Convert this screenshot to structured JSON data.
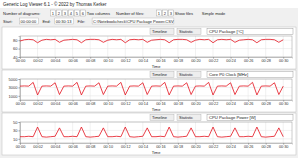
{
  "window": {
    "title": "Generic Log Viewer 6.1 - © 2022 by Thomas Kerker",
    "toolbar": [
      "Number of diagrams:",
      "1",
      "2",
      "3",
      "4",
      "5",
      "6",
      "Two columns",
      "Number of files:",
      "1",
      "2",
      "3",
      "Show files",
      "Simple mode"
    ],
    "toolbar2": [
      "Start:",
      "00:00:00",
      "End:",
      "00:30:13",
      "File:",
      "C:\\Notebookcheck\\CPU Package Power.CSV"
    ]
  },
  "panel_buttons": [
    "Timeline",
    "Statistic"
  ],
  "chart_data": [
    {
      "type": "line",
      "title": "CPU Package [°C]",
      "x_label": "Time",
      "color": "#e3101c",
      "grid": true,
      "x": [
        0,
        0.5,
        1,
        1.5,
        2,
        2.5,
        3,
        3.5,
        4,
        4.5,
        5,
        5.5,
        6,
        6.5,
        7,
        7.5,
        8,
        8.5,
        9,
        9.5,
        10,
        10.5,
        11,
        11.5,
        12,
        12.5,
        13,
        13.5,
        14,
        14.5,
        15,
        15.5,
        16,
        16.5,
        17,
        17.5,
        18,
        18.5,
        19,
        19.5,
        20,
        20.5,
        21,
        21.5,
        22,
        22.5,
        23,
        23.5,
        24,
        24.5,
        25,
        25.5,
        26,
        26.5,
        27,
        27.5,
        28,
        28.5,
        29,
        29.5,
        30
      ],
      "values": [
        78,
        81,
        82,
        81,
        74,
        80,
        82,
        81,
        82,
        75,
        80,
        81,
        82,
        81,
        74,
        81,
        82,
        82,
        81,
        75,
        80,
        82,
        81,
        82,
        74,
        81,
        82,
        81,
        82,
        75,
        80,
        81,
        82,
        81,
        74,
        81,
        82,
        82,
        81,
        75,
        80,
        82,
        81,
        82,
        74,
        81,
        82,
        81,
        82,
        75,
        80,
        81,
        82,
        81,
        74,
        81,
        82,
        82,
        81,
        75,
        81
      ],
      "xlim": [
        0,
        31
      ],
      "ylim": [
        40,
        90
      ],
      "yticks": [
        40,
        60,
        80
      ],
      "xticks": [
        {
          "value": 0,
          "label": "00:00"
        },
        {
          "value": 2,
          "label": "00:02"
        },
        {
          "value": 4,
          "label": "00:04"
        },
        {
          "value": 6,
          "label": "00:06"
        },
        {
          "value": 8,
          "label": "00:08"
        },
        {
          "value": 10,
          "label": "00:10"
        },
        {
          "value": 12,
          "label": "00:12"
        },
        {
          "value": 14,
          "label": "00:14"
        },
        {
          "value": 16,
          "label": "00:16"
        },
        {
          "value": 18,
          "label": "00:18"
        },
        {
          "value": 20,
          "label": "00:20"
        },
        {
          "value": 22,
          "label": "00:22"
        },
        {
          "value": 24,
          "label": "00:24"
        },
        {
          "value": 26,
          "label": "00:26"
        },
        {
          "value": 28,
          "label": "00:28"
        },
        {
          "value": 30,
          "label": "00:30"
        }
      ]
    },
    {
      "type": "line",
      "title": "Core P0 Clock [MHz]",
      "x_label": "Time",
      "color": "#e3101c",
      "grid": true,
      "x": [
        0,
        0.5,
        1,
        1.5,
        2,
        2.5,
        3,
        3.5,
        4,
        4.5,
        5,
        5.5,
        6,
        6.5,
        7,
        7.5,
        8,
        8.5,
        9,
        9.5,
        10,
        10.5,
        11,
        11.5,
        12,
        12.5,
        13,
        13.5,
        14,
        14.5,
        15,
        15.5,
        16,
        16.5,
        17,
        17.5,
        18,
        18.5,
        19,
        19.5,
        20,
        20.5,
        21,
        21.5,
        22,
        22.5,
        23,
        23.5,
        24,
        24.5,
        25,
        25.5,
        26,
        26.5,
        27,
        27.5,
        28,
        28.5,
        29,
        29.5,
        30
      ],
      "values": [
        3300,
        3350,
        3300,
        4200,
        1200,
        3300,
        3350,
        3300,
        4100,
        1300,
        3300,
        3350,
        3300,
        4200,
        1200,
        3300,
        3350,
        3300,
        4100,
        1300,
        3300,
        3350,
        3300,
        4200,
        1200,
        3300,
        3350,
        3300,
        4100,
        1300,
        3300,
        3350,
        3300,
        4200,
        1200,
        3300,
        3350,
        3300,
        4100,
        1300,
        3300,
        3350,
        3300,
        4200,
        1200,
        3300,
        3350,
        3300,
        4100,
        1300,
        3300,
        3350,
        3300,
        4200,
        1200,
        3300,
        3350,
        3300,
        4100,
        1300,
        3300
      ],
      "xlim": [
        0,
        31
      ],
      "ylim": [
        0,
        5000
      ],
      "yticks": [
        1000,
        3000,
        5000
      ],
      "xticks": [
        {
          "value": 0,
          "label": "00:00"
        },
        {
          "value": 2,
          "label": "00:02"
        },
        {
          "value": 4,
          "label": "00:04"
        },
        {
          "value": 6,
          "label": "00:06"
        },
        {
          "value": 8,
          "label": "00:08"
        },
        {
          "value": 10,
          "label": "00:10"
        },
        {
          "value": 12,
          "label": "00:12"
        },
        {
          "value": 14,
          "label": "00:14"
        },
        {
          "value": 16,
          "label": "00:16"
        },
        {
          "value": 18,
          "label": "00:18"
        },
        {
          "value": 20,
          "label": "00:20"
        },
        {
          "value": 22,
          "label": "00:22"
        },
        {
          "value": 24,
          "label": "00:24"
        },
        {
          "value": 26,
          "label": "00:26"
        },
        {
          "value": 28,
          "label": "00:28"
        },
        {
          "value": 30,
          "label": "00:30"
        }
      ]
    },
    {
      "type": "line",
      "title": "CPU Package Power [W]",
      "x_label": "Time",
      "color": "#e3101c",
      "grid": true,
      "x": [
        0,
        0.5,
        1,
        1.5,
        2,
        2.5,
        3,
        3.5,
        4,
        4.5,
        5,
        5.5,
        6,
        6.5,
        7,
        7.5,
        8,
        8.5,
        9,
        9.5,
        10,
        10.5,
        11,
        11.5,
        12,
        12.5,
        13,
        13.5,
        14,
        14.5,
        15,
        15.5,
        16,
        16.5,
        17,
        17.5,
        18,
        18.5,
        19,
        19.5,
        20,
        20.5,
        21,
        21.5,
        22,
        22.5,
        23,
        23.5,
        24,
        24.5,
        25,
        25.5,
        26,
        26.5,
        27,
        27.5,
        28,
        28.5,
        29,
        29.5,
        30
      ],
      "values": [
        15,
        15,
        16,
        15,
        38,
        15,
        14,
        15,
        16,
        36,
        15,
        15,
        16,
        15,
        38,
        15,
        14,
        15,
        16,
        36,
        15,
        15,
        16,
        15,
        38,
        15,
        14,
        15,
        16,
        36,
        15,
        15,
        16,
        15,
        38,
        15,
        14,
        15,
        16,
        36,
        15,
        15,
        16,
        15,
        38,
        15,
        14,
        15,
        16,
        36,
        15,
        15,
        16,
        15,
        38,
        15,
        14,
        15,
        16,
        36,
        15
      ],
      "xlim": [
        0,
        31
      ],
      "ylim": [
        0,
        50
      ],
      "yticks": [
        10,
        30,
        50
      ],
      "xticks": [
        {
          "value": 0,
          "label": "00:00"
        },
        {
          "value": 2,
          "label": "00:02"
        },
        {
          "value": 4,
          "label": "00:04"
        },
        {
          "value": 6,
          "label": "00:06"
        },
        {
          "value": 8,
          "label": "00:08"
        },
        {
          "value": 10,
          "label": "00:10"
        },
        {
          "value": 12,
          "label": "00:12"
        },
        {
          "value": 14,
          "label": "00:14"
        },
        {
          "value": 16,
          "label": "00:16"
        },
        {
          "value": 18,
          "label": "00:18"
        },
        {
          "value": 20,
          "label": "00:20"
        },
        {
          "value": 22,
          "label": "00:22"
        },
        {
          "value": 24,
          "label": "00:24"
        },
        {
          "value": 26,
          "label": "00:26"
        },
        {
          "value": 28,
          "label": "00:28"
        },
        {
          "value": 30,
          "label": "00:30"
        }
      ]
    }
  ]
}
